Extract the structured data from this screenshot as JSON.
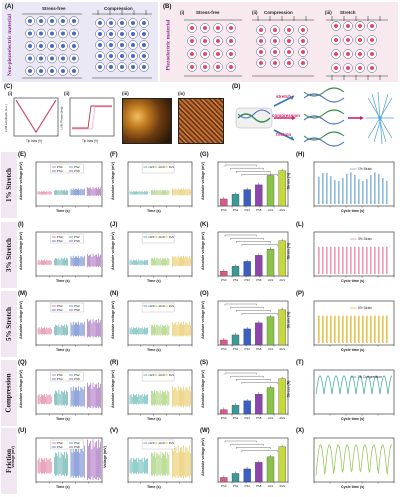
{
  "top": {
    "A": {
      "label": "(A)",
      "side": "Non-piezoelectric material",
      "cap1": "Stress-free",
      "cap2": "Compression"
    },
    "B": {
      "label": "(B)",
      "side": "Piezoelectric material",
      "i": "(i)",
      "ii": "(ii)",
      "iii": "(iii)",
      "cap1": "Stress-free",
      "cap2": "Compression",
      "cap3": "Stretch"
    },
    "C": {
      "label": "(C)",
      "i": "(i)",
      "ii": "(ii)",
      "iii": "(iii)",
      "iv": "(iv)",
      "ylab_i": "LVM amplitude (a.u.)",
      "ylab_ii": "LVM Phase (deg)",
      "xlab": "Tip bias (V)"
    },
    "D": {
      "label": "(D)",
      "w1": "stretch",
      "w2": "compression",
      "w3": "friction"
    }
  },
  "rows": [
    {
      "name": "1% Stretch",
      "letters": [
        "(E)",
        "(F)",
        "(G)",
        "(H)"
      ],
      "strain": "1% Strain",
      "hylabel": "Strain (%)"
    },
    {
      "name": "3% Stretch",
      "letters": [
        "(I)",
        "(J)",
        "(K)",
        "(L)"
      ],
      "strain": "3% Strain",
      "hylabel": "Strain (%)"
    },
    {
      "name": "5% Stretch",
      "letters": [
        "(M)",
        "(N)",
        "(O)",
        "(P)"
      ],
      "strain": "5% Strain",
      "hylabel": "Strain (%)"
    },
    {
      "name": "Compression",
      "letters": [
        "(Q)",
        "(R)",
        "(S)",
        "(T)"
      ],
      "strain": "1N Compression",
      "hylabel": "Stress (N)"
    },
    {
      "name": "Friction",
      "letters": [
        "(U)",
        "(V)",
        "(W)",
        "(X)"
      ],
      "strain": "",
      "hylabel": ""
    }
  ],
  "common": {
    "yAbs": "Absolute voltage (mV)",
    "yV": "Voltage (mV)",
    "xTime": "Time (s)",
    "xCycle": "Cycle time (s)",
    "legend1": [
      "PS0",
      "PS2",
      "PS4",
      "PS8"
    ],
    "legend2": [
      "cGS",
      "dGS",
      "fGS"
    ],
    "legendR": [
      "cGS",
      "dGS",
      "fGS"
    ],
    "wlabels": [
      "PS0",
      "PS2",
      "PS4",
      "PS8",
      "cGS",
      "dGS"
    ]
  },
  "colors": {
    "ps0": "#d85a8a",
    "ps2": "#3a9a9a",
    "ps4": "#3b5fc0",
    "ps8": "#8e44ad",
    "green": "#8bc34a",
    "lime": "#c4d83a",
    "pink": "#e88aa8",
    "blue": "#7ab0d8",
    "orange": "#e6a830",
    "gold": "#e0b830",
    "teal": "#39a6a0",
    "purple": "#8e5bc8"
  },
  "chart_data": [
    {
      "type": "bar",
      "panel": "G",
      "categories": [
        "PS0",
        "PS2",
        "PS4",
        "PS8",
        "cGS",
        "dGS"
      ],
      "values": [
        6,
        10,
        14,
        18,
        26,
        30
      ]
    },
    {
      "type": "bar",
      "panel": "K",
      "categories": [
        "PS0",
        "PS2",
        "PS4",
        "PS8",
        "cGS",
        "dGS"
      ],
      "values": [
        8,
        16,
        24,
        34,
        44,
        58
      ]
    },
    {
      "type": "bar",
      "panel": "O",
      "categories": [
        "PS0",
        "PS2",
        "PS4",
        "PS8",
        "cGS",
        "dGS"
      ],
      "values": [
        10,
        20,
        32,
        44,
        56,
        70
      ]
    },
    {
      "type": "bar",
      "panel": "S",
      "categories": [
        "PS0",
        "PS2",
        "PS4",
        "PS8",
        "cGS",
        "dGS"
      ],
      "values": [
        20,
        40,
        60,
        90,
        120,
        160
      ]
    },
    {
      "type": "bar",
      "panel": "W",
      "categories": [
        "PS0",
        "PS2",
        "PS4",
        "PS8",
        "cGS",
        "dGS"
      ],
      "values": [
        18,
        34,
        52,
        78,
        100,
        140
      ]
    }
  ]
}
